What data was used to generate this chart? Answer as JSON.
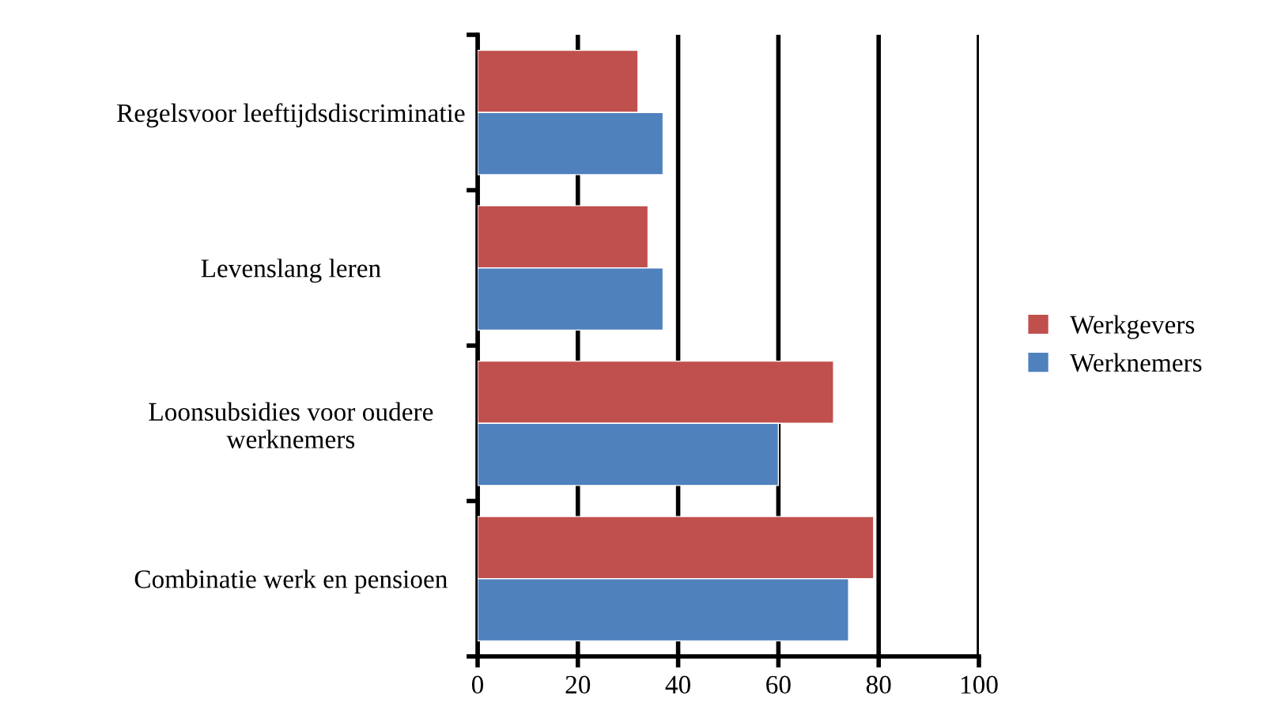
{
  "chart_data": {
    "type": "bar",
    "orientation": "horizontal",
    "categories": [
      "Regelsvoor leeftijdsdiscriminatie",
      "Levenslang leren",
      "Loonsubsidies voor oudere\nwerknemers",
      "Combinatie werk en pensioen"
    ],
    "series": [
      {
        "name": "Werkgevers",
        "color": "#c0504d",
        "values": [
          32,
          34,
          71,
          79
        ]
      },
      {
        "name": "Werknemers",
        "color": "#4f81bd",
        "values": [
          37,
          37,
          60,
          74
        ]
      }
    ],
    "xlim": [
      0,
      100
    ],
    "xticks": [
      0,
      20,
      40,
      60,
      80,
      100
    ],
    "grid": "x",
    "legend": "right"
  }
}
